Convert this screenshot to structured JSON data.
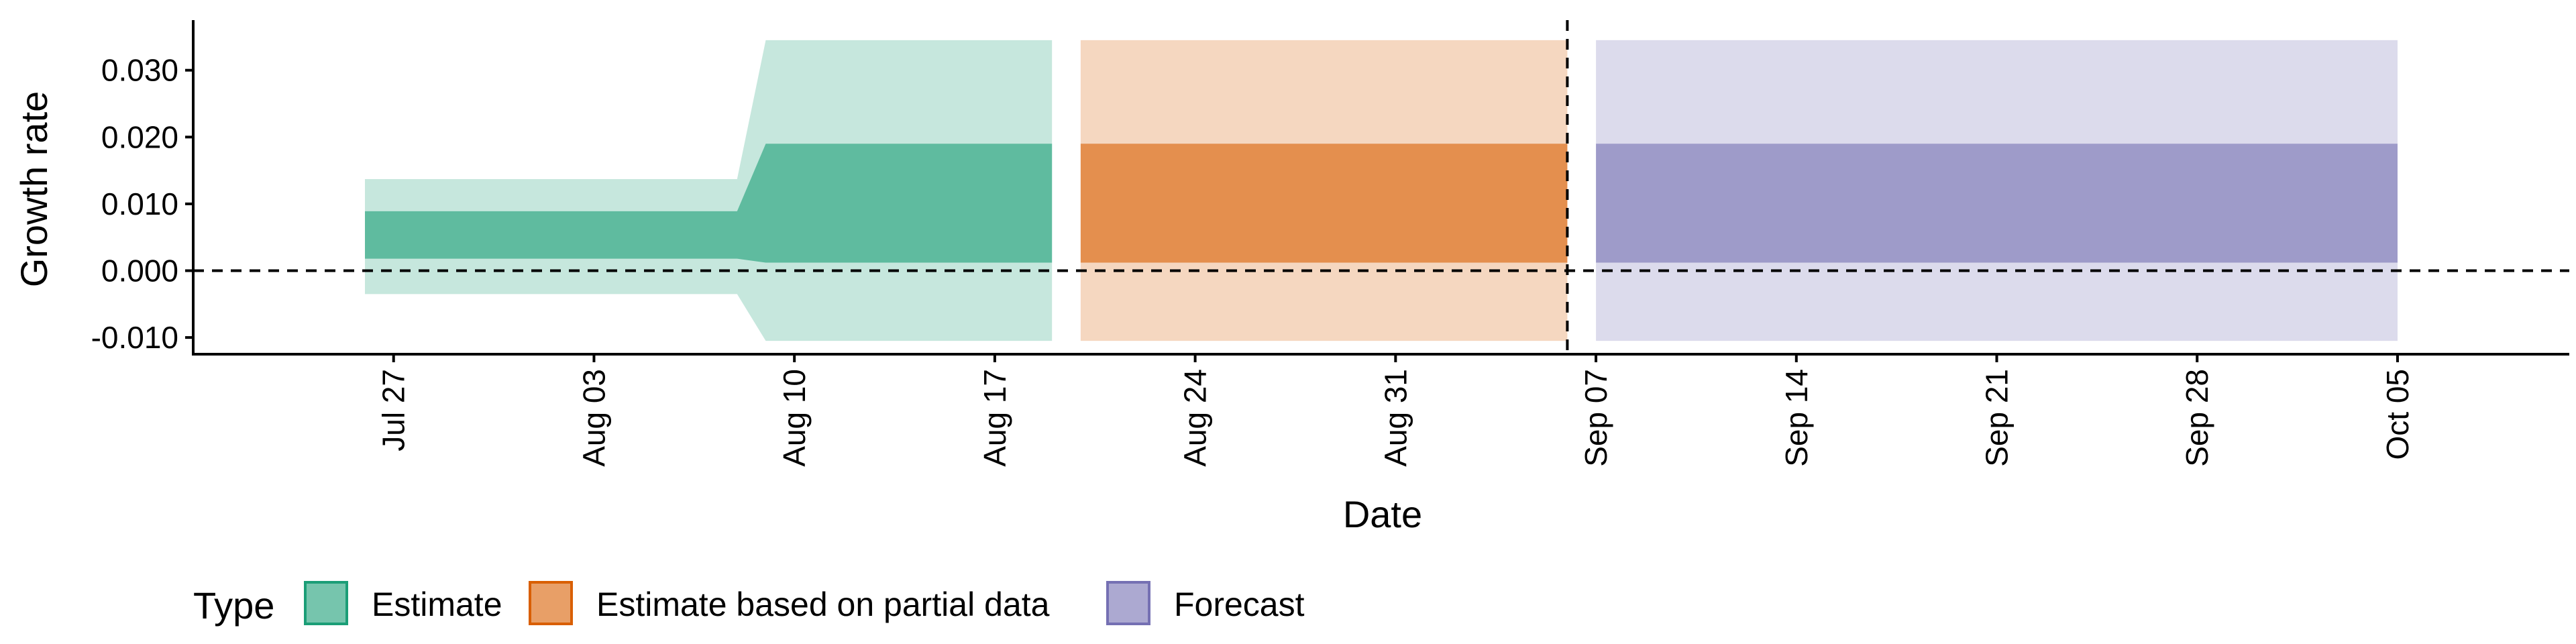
{
  "chart_data": {
    "type": "area",
    "xlabel": "Date",
    "ylabel": "Growth rate",
    "x_type": "date",
    "xlim": [
      "2020-07-20",
      "2020-10-11"
    ],
    "ylim": [
      -0.0125,
      0.0375
    ],
    "yticks": [
      -0.01,
      0.0,
      0.01,
      0.02,
      0.03
    ],
    "ytick_labels": [
      "-0.010",
      "0.000",
      "0.010",
      "0.020",
      "0.030"
    ],
    "xticks": [
      "2020-07-27",
      "2020-08-03",
      "2020-08-10",
      "2020-08-17",
      "2020-08-24",
      "2020-08-31",
      "2020-09-07",
      "2020-09-14",
      "2020-09-21",
      "2020-09-28",
      "2020-10-05"
    ],
    "xtick_labels": [
      "Jul 27",
      "Aug 03",
      "Aug 10",
      "Aug 17",
      "Aug 24",
      "Aug 31",
      "Sep 07",
      "Sep 14",
      "Sep 21",
      "Sep 28",
      "Oct 05"
    ],
    "hline": 0.0,
    "vline": "2020-09-06",
    "legend": {
      "title": "Type",
      "position": "bottom-left",
      "entries": [
        "Estimate",
        "Estimate based on partial data",
        "Forecast"
      ]
    },
    "series": [
      {
        "name": "Estimate",
        "color": "#1b9e77",
        "points": [
          {
            "x": "2020-07-26",
            "outer": [
              -0.0035,
              0.0137
            ],
            "inner": [
              0.0018,
              0.0089
            ]
          },
          {
            "x": "2020-08-08",
            "outer": [
              -0.0035,
              0.0137
            ],
            "inner": [
              0.0018,
              0.0089
            ]
          },
          {
            "x": "2020-08-09",
            "outer": [
              -0.0105,
              0.0345
            ],
            "inner": [
              0.0012,
              0.019
            ]
          },
          {
            "x": "2020-08-19",
            "outer": [
              -0.0105,
              0.0345
            ],
            "inner": [
              0.0012,
              0.019
            ]
          }
        ]
      },
      {
        "name": "Estimate based on partial data",
        "color": "#d95f02",
        "points": [
          {
            "x": "2020-08-20",
            "outer": [
              -0.0105,
              0.0345
            ],
            "inner": [
              0.0012,
              0.019
            ]
          },
          {
            "x": "2020-09-06",
            "outer": [
              -0.0105,
              0.0345
            ],
            "inner": [
              0.0012,
              0.019
            ]
          }
        ]
      },
      {
        "name": "Forecast",
        "color": "#7570b3",
        "points": [
          {
            "x": "2020-09-07",
            "outer": [
              -0.0105,
              0.0345
            ],
            "inner": [
              0.0012,
              0.019
            ]
          },
          {
            "x": "2020-10-05",
            "outer": [
              -0.0105,
              0.0345
            ],
            "inner": [
              0.0012,
              0.019
            ]
          }
        ]
      }
    ],
    "grid": false
  }
}
